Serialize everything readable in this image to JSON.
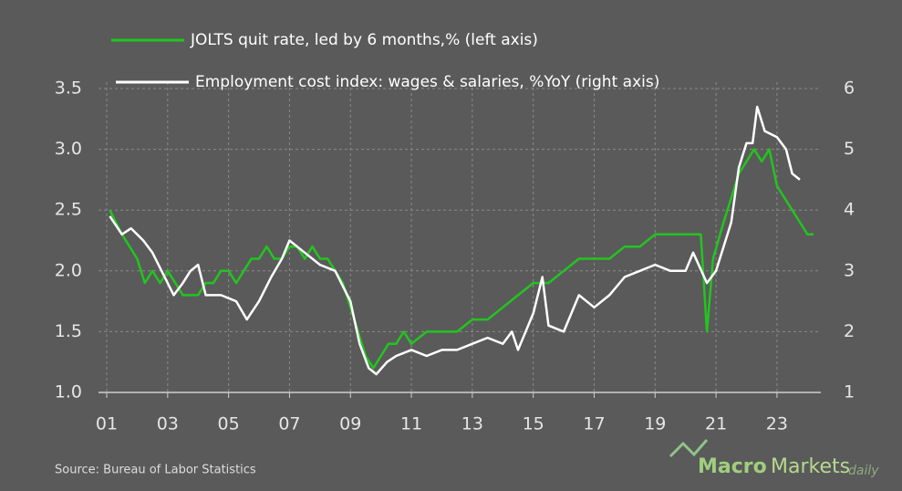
{
  "chart_data": {
    "type": "line",
    "legend": "top",
    "grid": true,
    "xlim": [
      2000.73,
      2024.44
    ],
    "xticks": [
      {
        "value": 2001,
        "label": "01"
      },
      {
        "value": 2003,
        "label": "03"
      },
      {
        "value": 2005,
        "label": "05"
      },
      {
        "value": 2007,
        "label": "07"
      },
      {
        "value": 2009,
        "label": "09"
      },
      {
        "value": 2011,
        "label": "11"
      },
      {
        "value": 2013,
        "label": "13"
      },
      {
        "value": 2015,
        "label": "15"
      },
      {
        "value": 2017,
        "label": "17"
      },
      {
        "value": 2019,
        "label": "19"
      },
      {
        "value": 2021,
        "label": "21"
      },
      {
        "value": 2023,
        "label": "23"
      }
    ],
    "ylim": [
      1,
      3.5
    ],
    "yticks": [
      {
        "value": 1,
        "label": "1.0"
      },
      1.5,
      {
        "value": 2,
        "label": "2.0"
      },
      2.5,
      {
        "value": 3,
        "label": "3.0"
      },
      3.5
    ],
    "y2lim": [
      1,
      6
    ],
    "y2ticks": [
      1,
      2,
      3,
      4,
      5,
      6
    ],
    "source": "Source:  Bureau  of Labor Statistics",
    "logo": [
      "Macro",
      "Markets",
      "daily"
    ],
    "series": [
      {
        "name": "JOLTS quit rate, led by 6 months,% (left axis)",
        "color": "#22c51e",
        "axis": "y",
        "x": [
          2001.1,
          2001.3,
          2001.5,
          2001.75,
          2002.0,
          2002.25,
          2002.5,
          2002.75,
          2003.0,
          2003.25,
          2003.5,
          2003.75,
          2004.0,
          2004.25,
          2004.5,
          2004.75,
          2005.0,
          2005.25,
          2005.5,
          2005.75,
          2006.0,
          2006.25,
          2006.5,
          2006.75,
          2007.0,
          2007.25,
          2007.5,
          2007.75,
          2008.0,
          2008.25,
          2008.5,
          2008.75,
          2009.0,
          2009.25,
          2009.5,
          2009.75,
          2010.0,
          2010.25,
          2010.5,
          2010.75,
          2011.0,
          2011.5,
          2012.0,
          2012.5,
          2013.0,
          2013.5,
          2014.0,
          2014.5,
          2015.0,
          2015.5,
          2016.0,
          2016.5,
          2017.0,
          2017.5,
          2018.0,
          2018.5,
          2019.0,
          2019.5,
          2020.0,
          2020.5,
          2020.7,
          2020.9,
          2021.25,
          2021.5,
          2021.75,
          2022.0,
          2022.25,
          2022.5,
          2022.75,
          2023.0,
          2023.25,
          2023.5,
          2023.75,
          2024.0,
          2024.2
        ],
        "values": [
          2.5,
          2.4,
          2.3,
          2.2,
          2.1,
          1.9,
          2.0,
          1.9,
          2.0,
          1.9,
          1.8,
          1.8,
          1.8,
          1.9,
          1.9,
          2.0,
          2.0,
          1.9,
          2.0,
          2.1,
          2.1,
          2.2,
          2.1,
          2.1,
          2.2,
          2.2,
          2.1,
          2.2,
          2.1,
          2.1,
          2.0,
          1.9,
          1.7,
          1.5,
          1.3,
          1.2,
          1.3,
          1.4,
          1.4,
          1.5,
          1.4,
          1.5,
          1.5,
          1.5,
          1.6,
          1.6,
          1.7,
          1.8,
          1.9,
          1.9,
          2.0,
          2.1,
          2.1,
          2.1,
          2.2,
          2.2,
          2.3,
          2.3,
          2.3,
          2.3,
          1.5,
          2.1,
          2.4,
          2.6,
          2.8,
          2.9,
          3.0,
          2.9,
          3.0,
          2.7,
          2.6,
          2.5,
          2.4,
          2.3,
          2.3
        ]
      },
      {
        "name": "Employment cost index: wages & salaries, %YoY (right axis)",
        "color": "#ffffff",
        "axis": "y2",
        "x": [
          2001.1,
          2001.5,
          2001.8,
          2002.2,
          2002.5,
          2002.9,
          2003.2,
          2003.5,
          2003.75,
          2004.0,
          2004.25,
          2004.75,
          2005.25,
          2005.6,
          2006.0,
          2006.4,
          2006.75,
          2007.0,
          2007.25,
          2007.5,
          2008.0,
          2008.5,
          2009.0,
          2009.3,
          2009.6,
          2009.85,
          2010.2,
          2010.5,
          2011.0,
          2011.5,
          2012.0,
          2012.5,
          2013.0,
          2013.5,
          2014.0,
          2014.3,
          2014.5,
          2015.0,
          2015.3,
          2015.5,
          2016.0,
          2016.5,
          2017.0,
          2017.5,
          2018.0,
          2018.5,
          2019.0,
          2019.5,
          2020.0,
          2020.25,
          2020.7,
          2021.0,
          2021.5,
          2021.75,
          2022.0,
          2022.2,
          2022.35,
          2022.6,
          2023.0,
          2023.3,
          2023.5,
          2023.75
        ],
        "values": [
          3.9,
          3.6,
          3.7,
          3.5,
          3.3,
          2.9,
          2.6,
          2.8,
          3.0,
          3.1,
          2.6,
          2.6,
          2.5,
          2.2,
          2.5,
          2.9,
          3.2,
          3.5,
          3.4,
          3.3,
          3.1,
          3.0,
          2.5,
          1.8,
          1.4,
          1.3,
          1.5,
          1.6,
          1.7,
          1.6,
          1.7,
          1.7,
          1.8,
          1.9,
          1.8,
          2.0,
          1.7,
          2.3,
          2.9,
          2.1,
          2.0,
          2.6,
          2.4,
          2.6,
          2.9,
          3.0,
          3.1,
          3.0,
          3.0,
          3.3,
          2.8,
          3.0,
          3.8,
          4.7,
          5.1,
          5.1,
          5.7,
          5.3,
          5.2,
          5.0,
          4.6,
          4.5
        ]
      }
    ]
  }
}
